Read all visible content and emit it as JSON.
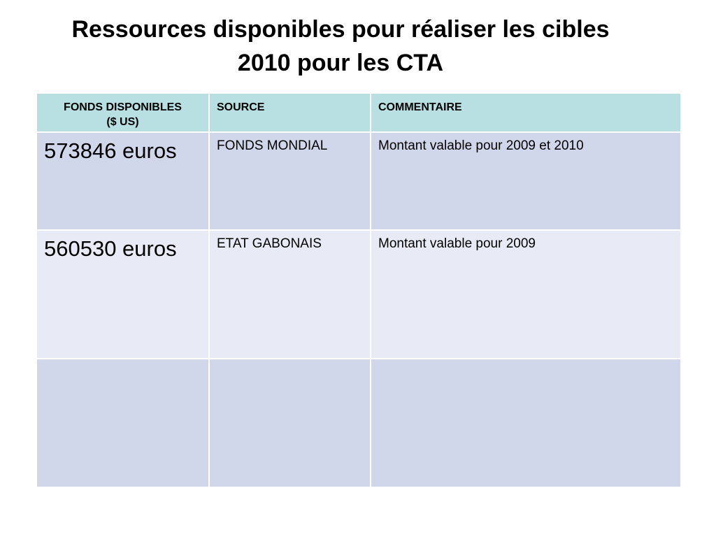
{
  "slide": {
    "title_line1": "Ressources disponibles pour réaliser les cibles",
    "title_line2": "2010 pour les CTA"
  },
  "table": {
    "headers": {
      "amount_line1": "FONDS DISPONIBLES",
      "amount_line2": "($ US)",
      "source": "SOURCE",
      "comment": "COMMENTAIRE"
    },
    "rows": [
      {
        "amount": "573846 euros",
        "source": "FONDS MONDIAL",
        "comment": "Montant valable pour 2009 et 2010"
      },
      {
        "amount": "560530 euros",
        "source": "ETAT GABONAIS",
        "comment": "Montant valable pour 2009"
      },
      {
        "amount": "",
        "source": "",
        "comment": ""
      }
    ]
  },
  "colors": {
    "header_bg": "#b8dfe2",
    "row_dark_bg": "#d1d7ea",
    "row_light_bg": "#e8ebf5"
  }
}
